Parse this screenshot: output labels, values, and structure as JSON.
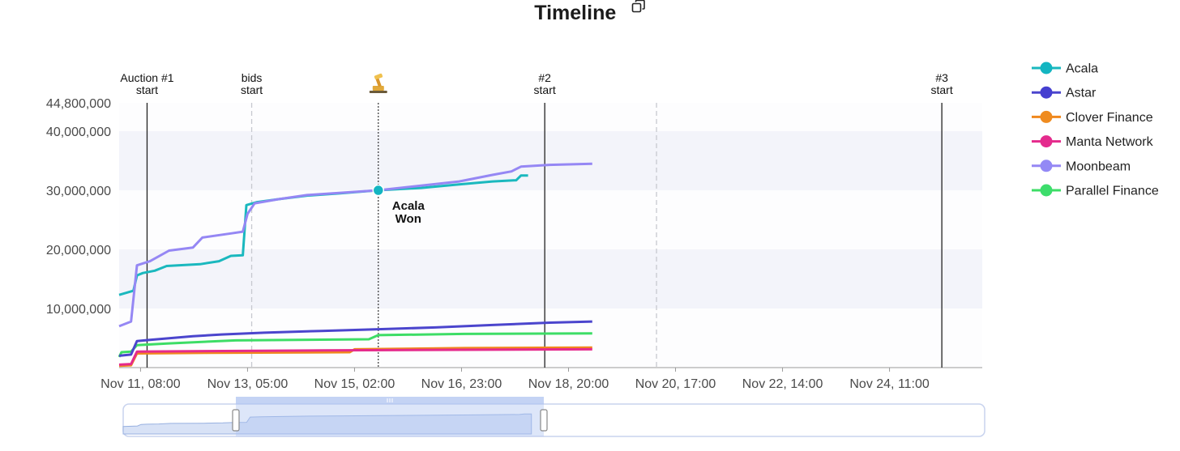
{
  "header": {
    "title": "Timeline",
    "copy_icon": "copy-icon"
  },
  "annotation": {
    "text_line1": "Acala",
    "text_line2": "Won",
    "gavel_icon": "gavel-icon"
  },
  "markers": [
    {
      "label1": "Auction #1",
      "label2": "start",
      "x": "2021-11-11T10:45",
      "style": "solid"
    },
    {
      "label1": "bids",
      "label2": "start",
      "x": "2021-11-13T06:45",
      "style": "dashed"
    },
    {
      "label1": "",
      "label2": "",
      "x": "2021-11-15T12:00",
      "style": "dotted"
    },
    {
      "label1": "#2",
      "label2": "start",
      "x": "2021-11-18T10:00",
      "style": "solid"
    },
    {
      "label1": "",
      "label2": "",
      "x": "2021-11-20T09:00",
      "style": "dashed"
    },
    {
      "label1": "#3",
      "label2": "start",
      "x": "2021-11-25T09:00",
      "style": "solid"
    }
  ],
  "chart_data": {
    "type": "line",
    "title": "Timeline",
    "xlabel": "",
    "ylabel": "",
    "x_ticks": [
      "Nov 11, 08:00",
      "Nov 13, 05:00",
      "Nov 15, 02:00",
      "Nov 16, 23:00",
      "Nov 18, 20:00",
      "Nov 20, 17:00",
      "Nov 22, 14:00",
      "Nov 24, 11:00"
    ],
    "y_ticks": [
      "44,800,000",
      "40,000,000",
      "30,000,000",
      "20,000,000",
      "10,000,000"
    ],
    "ylim": [
      0,
      44800000
    ],
    "xlim": [
      "2021-11-10T23:00",
      "2021-11-26T02:00"
    ],
    "legend_position": "right",
    "series": [
      {
        "name": "Acala",
        "color": "#1ab8be",
        "marker_color": "#13b5c1",
        "points": [
          [
            "2021-11-10T23:00",
            12300000
          ],
          [
            "2021-11-11T05:00",
            13000000
          ],
          [
            "2021-11-11T06:30",
            15600000
          ],
          [
            "2021-11-11T09:00",
            16000000
          ],
          [
            "2021-11-11T14:00",
            16400000
          ],
          [
            "2021-11-11T19:00",
            17200000
          ],
          [
            "2021-11-12T09:00",
            17500000
          ],
          [
            "2021-11-12T17:00",
            18000000
          ],
          [
            "2021-11-12T22:00",
            18900000
          ],
          [
            "2021-11-13T03:00",
            19000000
          ],
          [
            "2021-11-13T04:30",
            27500000
          ],
          [
            "2021-11-13T09:00",
            28000000
          ],
          [
            "2021-11-13T18:00",
            28500000
          ],
          [
            "2021-11-14T06:00",
            29100000
          ],
          [
            "2021-11-14T20:00",
            29500000
          ],
          [
            "2021-11-15T12:00",
            30000000
          ],
          [
            "2021-11-16T06:00",
            30400000
          ],
          [
            "2021-11-16T22:00",
            31000000
          ],
          [
            "2021-11-17T12:00",
            31500000
          ],
          [
            "2021-11-17T22:00",
            31700000
          ],
          [
            "2021-11-18T00:00",
            32500000
          ],
          [
            "2021-11-18T03:00",
            32500000
          ]
        ]
      },
      {
        "name": "Astar",
        "color": "#4b45cd",
        "marker_color": "#453fd0",
        "points": [
          [
            "2021-11-10T23:00",
            2000000
          ],
          [
            "2021-11-11T04:00",
            2200000
          ],
          [
            "2021-11-11T06:30",
            4500000
          ],
          [
            "2021-11-11T12:00",
            4700000
          ],
          [
            "2021-11-12T06:00",
            5300000
          ],
          [
            "2021-11-12T18:00",
            5600000
          ],
          [
            "2021-11-13T12:00",
            5900000
          ],
          [
            "2021-11-14T12:00",
            6200000
          ],
          [
            "2021-11-15T12:00",
            6500000
          ],
          [
            "2021-11-16T12:00",
            6800000
          ],
          [
            "2021-11-17T12:00",
            7200000
          ],
          [
            "2021-11-18T12:00",
            7600000
          ],
          [
            "2021-11-19T06:00",
            7800000
          ]
        ]
      },
      {
        "name": "Clover Finance",
        "color": "#f0881d",
        "marker_color": "#ef8b1f",
        "points": [
          [
            "2021-11-10T23:00",
            300000
          ],
          [
            "2021-11-11T04:00",
            400000
          ],
          [
            "2021-11-11T06:30",
            2400000
          ],
          [
            "2021-11-12T12:00",
            2500000
          ],
          [
            "2021-11-15T00:00",
            2600000
          ],
          [
            "2021-11-15T02:00",
            3100000
          ],
          [
            "2021-11-17T00:00",
            3300000
          ],
          [
            "2021-11-19T06:00",
            3400000
          ]
        ]
      },
      {
        "name": "Manta Network",
        "color": "#e52a8c",
        "marker_color": "#e42b8d",
        "points": [
          [
            "2021-11-10T23:00",
            500000
          ],
          [
            "2021-11-11T04:00",
            600000
          ],
          [
            "2021-11-11T06:30",
            2700000
          ],
          [
            "2021-11-12T12:00",
            2800000
          ],
          [
            "2021-11-14T12:00",
            2900000
          ],
          [
            "2021-11-16T12:00",
            3000000
          ],
          [
            "2021-11-19T06:00",
            3100000
          ]
        ]
      },
      {
        "name": "Moonbeam",
        "color": "#9587f4",
        "marker_color": "#9389f5",
        "points": [
          [
            "2021-11-10T23:00",
            7000000
          ],
          [
            "2021-11-11T04:00",
            7800000
          ],
          [
            "2021-11-11T06:30",
            17300000
          ],
          [
            "2021-11-11T12:00",
            18000000
          ],
          [
            "2021-11-11T20:00",
            19800000
          ],
          [
            "2021-11-12T06:00",
            20300000
          ],
          [
            "2021-11-12T10:00",
            22000000
          ],
          [
            "2021-11-12T22:00",
            22700000
          ],
          [
            "2021-11-13T03:00",
            23000000
          ],
          [
            "2021-11-13T05:00",
            26000000
          ],
          [
            "2021-11-13T08:00",
            27800000
          ],
          [
            "2021-11-13T18:00",
            28500000
          ],
          [
            "2021-11-14T06:00",
            29200000
          ],
          [
            "2021-11-15T12:00",
            30000000
          ],
          [
            "2021-11-16T06:00",
            30800000
          ],
          [
            "2021-11-16T22:00",
            31500000
          ],
          [
            "2021-11-17T12:00",
            32600000
          ],
          [
            "2021-11-17T20:00",
            33200000
          ],
          [
            "2021-11-18T00:00",
            34000000
          ],
          [
            "2021-11-18T12:00",
            34300000
          ],
          [
            "2021-11-19T06:00",
            34500000
          ]
        ]
      },
      {
        "name": "Parallel Finance",
        "color": "#3ddd66",
        "marker_color": "#3ddd6c",
        "points": [
          [
            "2021-11-10T23:00",
            1800000
          ],
          [
            "2021-11-11T00:00",
            2600000
          ],
          [
            "2021-11-11T04:00",
            2700000
          ],
          [
            "2021-11-11T06:30",
            3800000
          ],
          [
            "2021-11-11T20:00",
            4100000
          ],
          [
            "2021-11-13T00:00",
            4600000
          ],
          [
            "2021-11-15T08:00",
            4800000
          ],
          [
            "2021-11-15T12:00",
            5500000
          ],
          [
            "2021-11-17T00:00",
            5700000
          ],
          [
            "2021-11-19T06:00",
            5800000
          ]
        ]
      }
    ],
    "highlight_point": {
      "series": "Acala",
      "x": "2021-11-15T12:00",
      "y": 30000000
    }
  },
  "navigator": {
    "range_start": "2021-11-10T23:00",
    "range_end": "2021-11-19T06:00",
    "handle_icon": "drag-handle-icon"
  }
}
